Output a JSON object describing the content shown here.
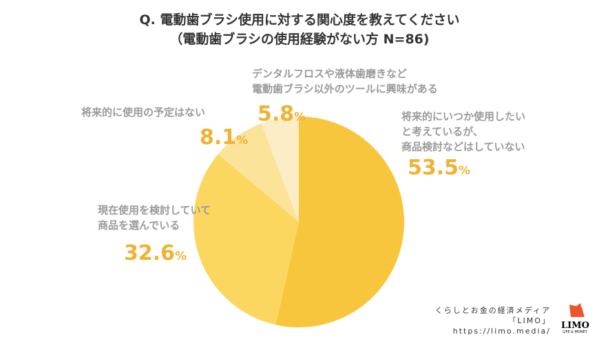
{
  "chart_data": {
    "type": "pie",
    "title": "Q. 電動歯ブラシ使用に対する関心度を教えてください",
    "subtitle": "（電動歯ブラシの使用経験がない方 N=86)",
    "slices": [
      {
        "label": "将来的にいつか使用したいと考えているが、商品検討などはしていない",
        "lines": [
          "将来的にいつか使用したい",
          "と考えているが、",
          "商品検討などはしていない"
        ],
        "value": 53.5,
        "color": "#f8c63c"
      },
      {
        "label": "現在使用を検討していて商品を選んでいる",
        "lines": [
          "現在使用を検討していて",
          "商品を選んでいる"
        ],
        "value": 32.6,
        "color": "#fbd760"
      },
      {
        "label": "将来的に使用の予定はない",
        "lines": [
          "将来的に使用の予定はない"
        ],
        "value": 8.1,
        "color": "#fce39a"
      },
      {
        "label": "デンタルフロスや液体歯磨きなど電動歯ブラシ以外のツールに興味がある",
        "lines": [
          "デンタルフロスや液体歯磨きなど",
          "電動歯ブラシ以外のツールに興味がある"
        ],
        "value": 5.8,
        "color": "#fdedc6"
      }
    ],
    "pct_text": [
      "53.5",
      "32.6",
      "8.1",
      "5.8"
    ],
    "pct_unit": "%"
  },
  "credit": {
    "line1": "くらしとお金の経済メディア",
    "line2": "「LIMO」",
    "url": "https://limo.media/",
    "logo": "LIMO",
    "logo_sub": "LIFE & MONEY"
  }
}
